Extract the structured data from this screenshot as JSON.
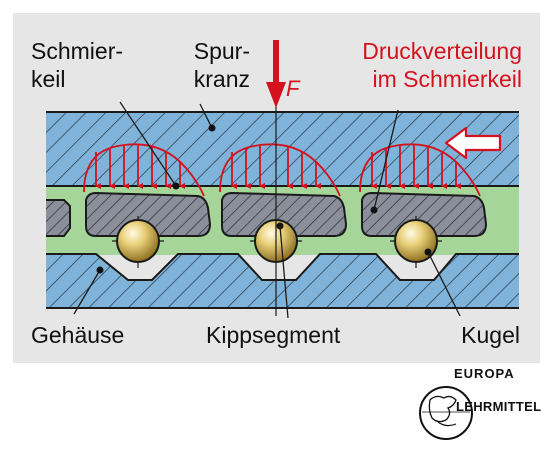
{
  "labels": {
    "schmierkeil_line1": "Schmier-",
    "schmierkeil_line2": "keil",
    "spurkranz_line1": "Spur-",
    "spurkranz_line2": "kranz",
    "druck_line1": "Druckverteilung",
    "druck_line2": "im Schmierkeil",
    "force": "F",
    "gehaeuse": "Gehäuse",
    "kippsegment": "Kippsegment",
    "kugel": "Kugel"
  },
  "logo": {
    "top_text": "EUROPA",
    "right_text": "LEHRMITTEL"
  },
  "colors": {
    "panel_bg": "#e6e6e6",
    "steel_blue": "#7fb3d9",
    "lubricant_green": "#a6d59a",
    "segment_gray": "#8a8f9a",
    "ball_gold": "#e3c766",
    "accent_red": "#d4121e"
  }
}
